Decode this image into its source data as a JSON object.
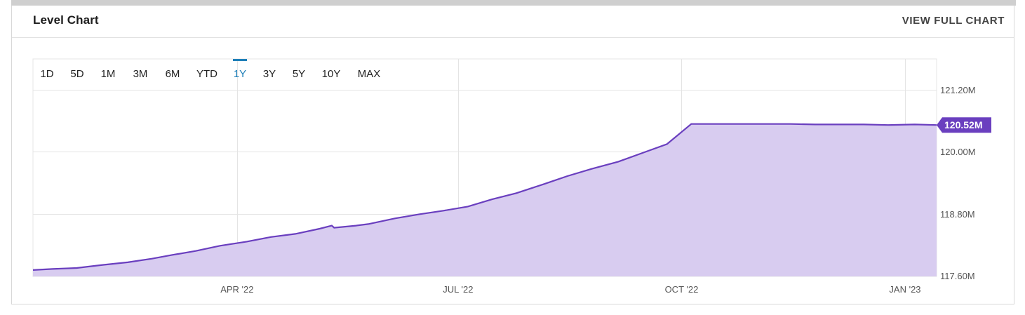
{
  "header": {
    "title": "Level Chart",
    "view_full_label": "VIEW FULL CHART"
  },
  "range_selector": {
    "options": [
      "1D",
      "5D",
      "1M",
      "3M",
      "6M",
      "YTD",
      "1Y",
      "3Y",
      "5Y",
      "10Y",
      "MAX"
    ],
    "active": "1Y"
  },
  "colors": {
    "line": "#6a3fbf",
    "fill": "#d8ccf0",
    "accent": "#1f7fb8",
    "grid": "#e4e4e4"
  },
  "chart_data": {
    "type": "area",
    "title": "Level Chart",
    "x_unit": "date",
    "y_unit": "M",
    "ylim": [
      117.6,
      121.8
    ],
    "y_ticks": [
      117.6,
      118.8,
      120.0,
      121.2
    ],
    "y_tick_labels": [
      "117.60M",
      "118.80M",
      "120.00M",
      "121.20M"
    ],
    "x_ticks": [
      "2022-04-01",
      "2022-07-01",
      "2022-10-01",
      "2023-01-01"
    ],
    "x_tick_labels": [
      "APR '22",
      "JUL '22",
      "OCT '22",
      "JAN '23"
    ],
    "xlim": [
      "2022-01-07",
      "2023-01-14"
    ],
    "grid": true,
    "series": [
      {
        "x": [
          "2022-01-07",
          "2022-01-15",
          "2022-01-25",
          "2022-02-05",
          "2022-02-15",
          "2022-02-25",
          "2022-03-05",
          "2022-03-15",
          "2022-03-25",
          "2022-04-05",
          "2022-04-15",
          "2022-04-25",
          "2022-05-05",
          "2022-05-10",
          "2022-05-11",
          "2022-05-20",
          "2022-05-25",
          "2022-06-05",
          "2022-06-15",
          "2022-06-25",
          "2022-07-05",
          "2022-07-15",
          "2022-07-25",
          "2022-08-05",
          "2022-08-15",
          "2022-08-25",
          "2022-09-05",
          "2022-09-15",
          "2022-09-25",
          "2022-10-05",
          "2022-10-15",
          "2022-10-25",
          "2022-11-05",
          "2022-11-15",
          "2022-11-25",
          "2022-12-05",
          "2022-12-15",
          "2022-12-25",
          "2023-01-05",
          "2023-01-14"
        ],
        "y": [
          117.71,
          117.73,
          117.75,
          117.81,
          117.86,
          117.93,
          118.0,
          118.08,
          118.18,
          118.26,
          118.35,
          118.41,
          118.51,
          118.57,
          118.53,
          118.57,
          118.6,
          118.71,
          118.79,
          118.86,
          118.94,
          119.08,
          119.2,
          119.37,
          119.53,
          119.67,
          119.81,
          119.98,
          120.15,
          120.54,
          120.54,
          120.54,
          120.54,
          120.54,
          120.53,
          120.53,
          120.53,
          120.52,
          120.53,
          120.52
        ]
      }
    ],
    "last_value_label": "120.52M"
  }
}
